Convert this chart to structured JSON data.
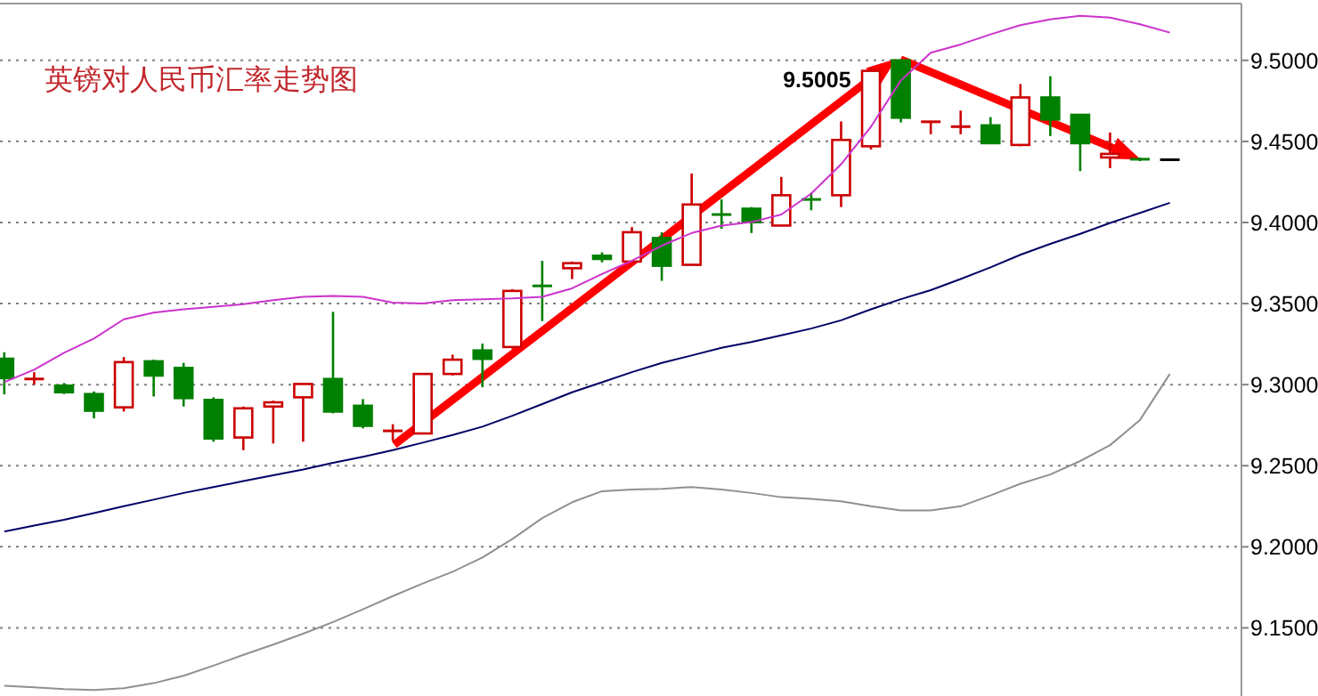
{
  "chart_data": {
    "type": "candlestick",
    "title": "英镑对人民币汇率走势图",
    "categories": [
      null,
      null,
      null,
      null,
      null,
      null,
      null,
      null,
      null,
      null,
      null,
      null,
      null,
      null,
      null,
      null,
      null,
      null,
      null,
      null,
      null,
      null,
      null,
      null,
      null,
      null,
      null,
      null,
      null,
      null,
      null,
      null,
      null,
      null,
      null,
      null,
      null,
      null,
      null,
      null
    ],
    "ohlc": [
      [
        9.316,
        9.32,
        9.294,
        9.304
      ],
      [
        9.3035,
        9.3077,
        9.2999,
        9.3035
      ],
      [
        9.2994,
        9.301,
        9.2942,
        9.2953
      ],
      [
        9.2942,
        9.2958,
        9.2792,
        9.2839
      ],
      [
        9.286,
        9.317,
        9.2834,
        9.3139
      ],
      [
        9.3144,
        9.3154,
        9.2927,
        9.3056
      ],
      [
        9.3103,
        9.3134,
        9.2865,
        9.2917
      ],
      [
        9.2906,
        9.2922,
        9.2648,
        9.2668
      ],
      [
        9.2674,
        9.2865,
        9.2596,
        9.2854
      ],
      [
        9.2865,
        9.2901,
        9.2637,
        9.2891
      ],
      [
        9.2922,
        9.3004,
        9.2648,
        9.3004
      ],
      [
        9.3035,
        9.3449,
        9.2823,
        9.2834
      ],
      [
        9.287,
        9.2911,
        9.273,
        9.2746
      ],
      [
        9.2715,
        9.2756,
        9.2653,
        9.2715
      ],
      [
        9.2699,
        9.3066,
        9.2699,
        9.3066
      ],
      [
        9.3066,
        9.3185,
        9.3056,
        9.3154
      ],
      [
        9.3211,
        9.3253,
        9.2984,
        9.3159
      ],
      [
        9.3232,
        9.3589,
        9.3222,
        9.3578
      ],
      [
        9.3609,
        9.3764,
        9.3392,
        9.3609
      ],
      [
        9.3718,
        9.3759,
        9.3651,
        9.3749
      ],
      [
        9.3795,
        9.3816,
        9.3754,
        9.3775
      ],
      [
        9.3759,
        9.3971,
        9.3754,
        9.394
      ],
      [
        9.3904,
        9.394,
        9.364,
        9.3733
      ],
      [
        9.3739,
        9.4302,
        9.3739,
        9.4111
      ],
      [
        9.4049,
        9.4142,
        9.3961,
        9.4049
      ],
      [
        9.4085,
        9.4095,
        9.3935,
        9.4002
      ],
      [
        9.3981,
        9.4281,
        9.3981,
        9.4168
      ],
      [
        9.4142,
        9.4183,
        9.4075,
        9.4142
      ],
      [
        9.4168,
        9.4623,
        9.4095,
        9.4509
      ],
      [
        9.447,
        9.4955,
        9.445,
        9.4935
      ],
      [
        9.5,
        9.5005,
        9.4617,
        9.4646
      ],
      [
        9.4621,
        9.4621,
        9.4544,
        9.4621
      ],
      [
        9.4591,
        9.469,
        9.4544,
        9.4591
      ],
      [
        9.4599,
        9.465,
        9.4489,
        9.4489
      ],
      [
        9.4478,
        9.4854,
        9.447,
        9.4771
      ],
      [
        9.4771,
        9.4902,
        9.4533,
        9.4635
      ],
      [
        9.4664,
        9.4664,
        9.4317,
        9.4489
      ],
      [
        9.4401,
        9.4555,
        9.4335,
        9.4423
      ],
      [
        9.439,
        9.4401,
        9.4379,
        9.439
      ],
      [
        9.4387,
        9.4387,
        9.4387,
        9.4387
      ]
    ],
    "colors": [
      "#008000",
      "#cc0000",
      "#008000",
      "#008000",
      "#cc0000",
      "#008000",
      "#008000",
      "#008000",
      "#cc0000",
      "#cc0000",
      "#cc0000",
      "#008000",
      "#008000",
      "#cc0000",
      "#cc0000",
      "#cc0000",
      "#008000",
      "#cc0000",
      "#008000",
      "#cc0000",
      "#008000",
      "#cc0000",
      "#008000",
      "#cc0000",
      "#008000",
      "#008000",
      "#cc0000",
      "#008000",
      "#cc0000",
      "#cc0000",
      "#008000",
      "#cc0000",
      "#cc0000",
      "#008000",
      "#cc0000",
      "#008000",
      "#008000",
      "#cc0000",
      "#008000",
      "#000000"
    ],
    "series": [
      {
        "type": "line",
        "color": "#cc33cc",
        "values": [
          9.3015,
          9.3092,
          9.3196,
          9.3284,
          9.3403,
          9.3444,
          9.3465,
          9.348,
          9.3496,
          9.3521,
          9.3542,
          9.3547,
          9.3542,
          9.3506,
          9.3501,
          9.3521,
          9.3527,
          9.3532,
          9.3542,
          9.3594,
          9.3682,
          9.3764,
          9.3857,
          9.3935,
          9.3981,
          9.4002,
          9.4049,
          9.4178,
          9.4359,
          9.4591,
          9.4876,
          9.5047,
          9.5098,
          9.516,
          9.5217,
          9.5253,
          9.5274,
          9.5264,
          9.5222,
          9.5171
        ]
      },
      {
        "type": "line",
        "color": "#000066",
        "values": [
          9.2094,
          9.2131,
          9.2167,
          9.2208,
          9.225,
          9.2291,
          9.2332,
          9.2368,
          9.2405,
          9.2441,
          9.2477,
          9.2518,
          9.2555,
          9.2596,
          9.2642,
          9.2689,
          9.2741,
          9.2808,
          9.288,
          9.2953,
          9.3015,
          9.3077,
          9.3134,
          9.318,
          9.3227,
          9.3263,
          9.3304,
          9.3346,
          9.3397,
          9.3465,
          9.3527,
          9.3583,
          9.3651,
          9.3723,
          9.3801,
          9.3868,
          9.393,
          9.3997,
          9.4059,
          9.4121
        ]
      },
      {
        "type": "line",
        "color": "#909090",
        "values": [
          9.1143,
          9.1133,
          9.1122,
          9.1117,
          9.1128,
          9.1159,
          9.1205,
          9.1267,
          9.1334,
          9.1397,
          9.1464,
          9.1536,
          9.1614,
          9.1696,
          9.1774,
          9.1846,
          9.1934,
          9.2048,
          9.2177,
          9.2275,
          9.2343,
          9.2353,
          9.2358,
          9.2368,
          9.2353,
          9.2332,
          9.2306,
          9.2296,
          9.2281,
          9.225,
          9.2224,
          9.2224,
          9.225,
          9.2317,
          9.2389,
          9.2446,
          9.2529,
          9.2627,
          9.2782,
          9.3066
        ]
      }
    ],
    "ylim": [
      9.108,
      9.535
    ],
    "yticks": [
      {
        "value": 9.15,
        "label": "9.1500"
      },
      {
        "value": 9.2,
        "label": "9.2000"
      },
      {
        "value": 9.25,
        "label": "9.2500"
      },
      {
        "value": 9.3,
        "label": "9.3000"
      },
      {
        "value": 9.35,
        "label": "9.3500"
      },
      {
        "value": 9.4,
        "label": "9.4000"
      },
      {
        "value": 9.45,
        "label": "9.4500"
      },
      {
        "value": 9.5,
        "label": "9.5000"
      }
    ],
    "grid": "y",
    "tick_labels": "y",
    "annotations": [
      "9.5005"
    ]
  }
}
